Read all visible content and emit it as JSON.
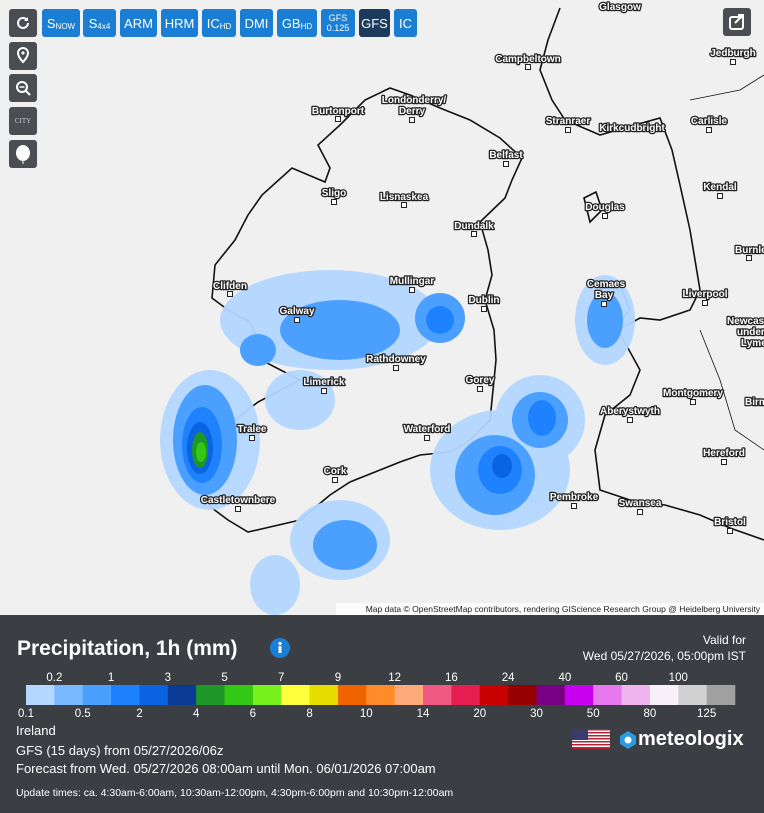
{
  "toolbar": {
    "buttons": [
      {
        "main": "S",
        "sub": "NOW"
      },
      {
        "main": "S",
        "sub": "4x4"
      },
      {
        "main": "ARM"
      },
      {
        "main": "HRM"
      },
      {
        "main": "IC",
        "sub": "HD"
      },
      {
        "main": "DMI"
      },
      {
        "main": "GB",
        "sub": "HD"
      },
      {
        "main": "GFS",
        "sub": "0.125"
      },
      {
        "main": "GFS"
      },
      {
        "main": "IC"
      }
    ],
    "city_icon": "CITY"
  },
  "map": {
    "places": [
      "Glasgow",
      "Campbeltown",
      "Jedburgh",
      "Burtonport",
      "Londonderry/",
      "Derry",
      "Stranraer",
      "Kirkcudbright",
      "Carlisle",
      "Belfast",
      "Sligo",
      "Lisnaskea",
      "Kendal",
      "Douglas",
      "Dundalk",
      "Burnley",
      "Clifden",
      "Mullingar",
      "Cemaes",
      "Bay",
      "Dublin",
      "Liverpool",
      "Newcastle-",
      "under-",
      "Lyme",
      "Galway",
      "Rathdowney",
      "Limerick",
      "Gorey",
      "Montgomery",
      "Birmingham",
      "Aberystwyth",
      "Tralee",
      "Waterford",
      "Hereford",
      "Cork",
      "Castletownbere",
      "Pembroke",
      "Swansea",
      "Bristol"
    ],
    "attribution": "Map data © OpenStreetMap contributors, rendering GIScience Research Group @ Heidelberg University"
  },
  "legend": {
    "title": "Precipitation, 1h (mm)",
    "valid_label": "Valid for",
    "valid_time": "Wed 05/27/2026, 05:00pm IST",
    "upper_labels": [
      0.2,
      1,
      3,
      5,
      7,
      9,
      12,
      16,
      24,
      40,
      60,
      100
    ],
    "lower_labels": [
      0.1,
      0.5,
      2,
      4,
      6,
      8,
      10,
      14,
      20,
      30,
      50,
      80,
      125
    ],
    "colors": [
      "#b4d7ff",
      "#78b9ff",
      "#4ba0ff",
      "#1e82ff",
      "#0a64e1",
      "#0a3c96",
      "#1e9628",
      "#32c814",
      "#78f01e",
      "#ffff3c",
      "#e6dc00",
      "#f06400",
      "#ff8c28",
      "#ffaa78",
      "#f05a82",
      "#e61e50",
      "#c80000",
      "#960000",
      "#780082",
      "#c800f0",
      "#e678f0",
      "#f0b4f0",
      "#faf0fa",
      "#d2d2d2",
      "#a0a0a0"
    ]
  },
  "footer": {
    "region": "Ireland",
    "model": "GFS (15 days) from 05/27/2026/06z",
    "forecast": "Forecast from Wed. 05/27/2026 08:00am until Mon. 06/01/2026 07:00am",
    "updates": "Update times: ca. 4:30am-6:00am, 10:30am-12:00pm, 4:30pm-6:00pm and 10:30pm-12:00am",
    "brand": "meteologix"
  }
}
